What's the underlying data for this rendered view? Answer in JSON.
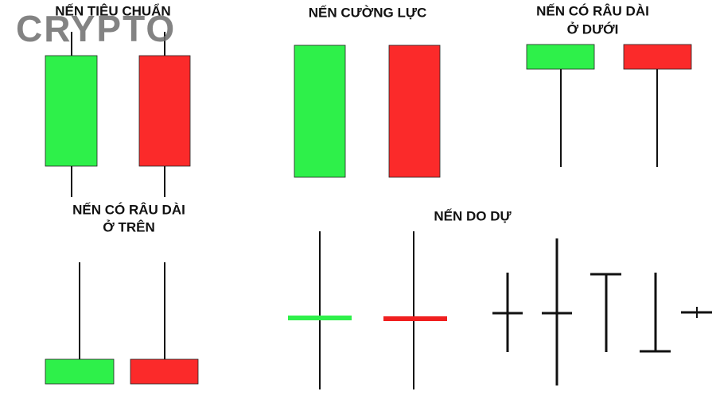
{
  "watermark": "CRYPTO",
  "labels": [
    {
      "lines": [
        "NẾN TIÊU CHUẨN"
      ]
    },
    {
      "lines": [
        "NẾN CƯỜNG LỰC"
      ]
    },
    {
      "lines": [
        "NẾN CÓ RÂU DÀI",
        "Ở DƯỚI"
      ]
    },
    {
      "lines": [
        "NẾN CÓ RÂU DÀI",
        "Ở TRÊN"
      ]
    },
    {
      "lines": [
        "NẾN DO DỰ"
      ]
    }
  ]
}
